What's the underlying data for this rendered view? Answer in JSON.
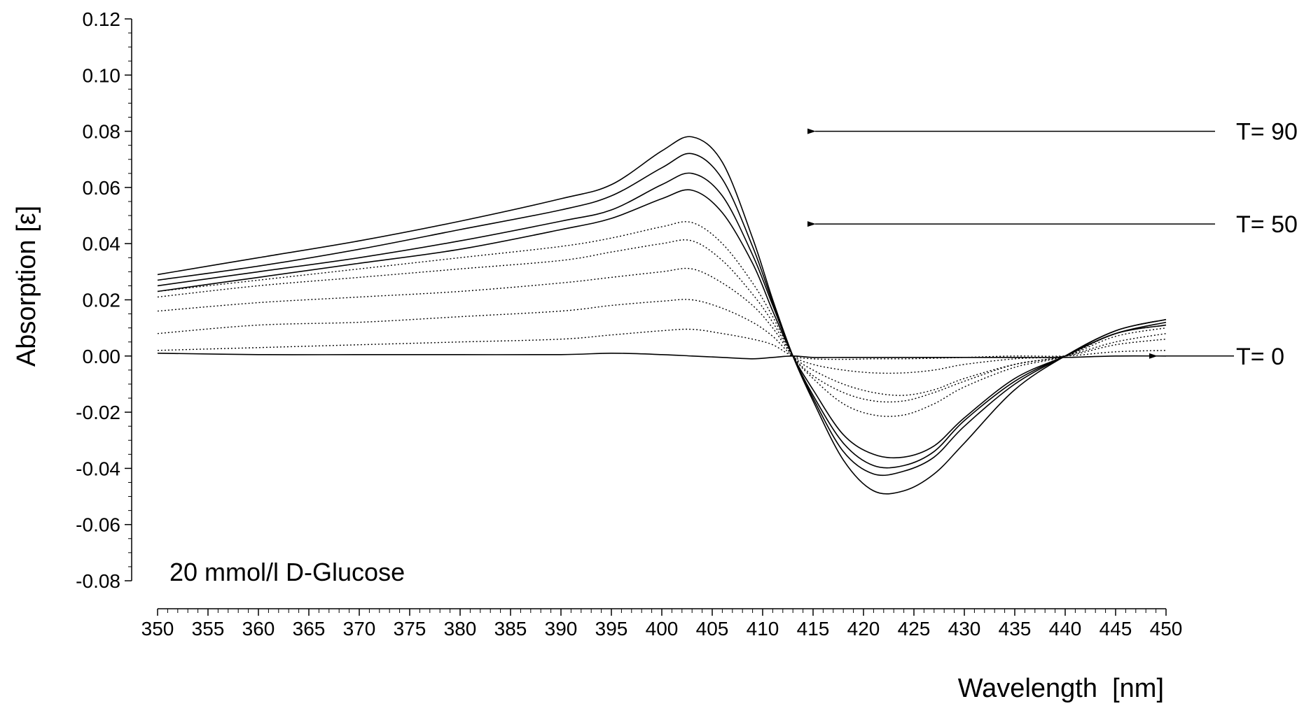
{
  "chart_data": {
    "type": "line",
    "title": "",
    "xlabel": "Wavelength  [nm]",
    "ylabel": "Absorption [ε]",
    "annotation": "20 mmol/l D-Glucose",
    "xlim": [
      350,
      450
    ],
    "ylim": [
      -0.08,
      0.12
    ],
    "xticks": [
      350,
      355,
      360,
      365,
      370,
      375,
      380,
      385,
      390,
      395,
      400,
      405,
      410,
      415,
      420,
      425,
      430,
      435,
      440,
      445,
      450
    ],
    "yticks": [
      -0.08,
      -0.06,
      -0.04,
      -0.02,
      0.0,
      0.02,
      0.04,
      0.06,
      0.08,
      0.1,
      0.12
    ],
    "ytick_labels": [
      "-0.08",
      "-0.06",
      "-0.04",
      "-0.02",
      "0.00",
      "0.02",
      "0.04",
      "0.06",
      "0.08",
      "0.10",
      "0.12"
    ],
    "grid": false,
    "legend": false,
    "labels": [
      {
        "text": "T= 90",
        "y": 0.08
      },
      {
        "text": "T= 50",
        "y": 0.047
      },
      {
        "text": "T= 0",
        "y": 0.0
      }
    ],
    "x": [
      350,
      360,
      370,
      380,
      390,
      395,
      400,
      403,
      406,
      409,
      411,
      413,
      415,
      418,
      421,
      424,
      427,
      430,
      435,
      440,
      445,
      450
    ],
    "series": [
      {
        "style": "solid",
        "values": [
          0.001,
          0.0005,
          0.0005,
          0.0005,
          0.0005,
          0.001,
          0.0005,
          0.0,
          -0.0005,
          -0.001,
          -0.0005,
          0.0,
          -0.0005,
          -0.0005,
          -0.0005,
          -0.0005,
          -0.0005,
          -0.0005,
          -0.0005,
          -0.0005,
          0.0,
          0.0
        ]
      },
      {
        "style": "dotted",
        "values": [
          0.002,
          0.003,
          0.004,
          0.005,
          0.006,
          0.0075,
          0.009,
          0.0095,
          0.008,
          0.006,
          0.004,
          0.0,
          -0.001,
          -0.0012,
          -0.001,
          -0.001,
          -0.0008,
          -0.0005,
          0.0,
          0.0,
          0.0015,
          0.002
        ]
      },
      {
        "style": "dotted",
        "values": [
          0.008,
          0.011,
          0.012,
          0.014,
          0.016,
          0.018,
          0.0195,
          0.02,
          0.017,
          0.012,
          0.007,
          0.0,
          -0.003,
          -0.005,
          -0.006,
          -0.006,
          -0.005,
          -0.003,
          -0.001,
          0.0,
          0.004,
          0.006
        ]
      },
      {
        "style": "dotted",
        "values": [
          0.016,
          0.019,
          0.021,
          0.023,
          0.026,
          0.028,
          0.03,
          0.031,
          0.026,
          0.018,
          0.01,
          0.0,
          -0.005,
          -0.01,
          -0.013,
          -0.014,
          -0.012,
          -0.008,
          -0.003,
          0.0,
          0.005,
          0.008
        ]
      },
      {
        "style": "dotted",
        "values": [
          0.021,
          0.025,
          0.028,
          0.031,
          0.034,
          0.037,
          0.04,
          0.041,
          0.034,
          0.022,
          0.012,
          0.0,
          -0.007,
          -0.013,
          -0.016,
          -0.016,
          -0.013,
          -0.009,
          -0.003,
          0.0,
          0.007,
          0.01
        ]
      },
      {
        "style": "dotted",
        "values": [
          0.023,
          0.027,
          0.031,
          0.035,
          0.039,
          0.042,
          0.046,
          0.0475,
          0.04,
          0.026,
          0.014,
          0.0,
          -0.008,
          -0.017,
          -0.021,
          -0.021,
          -0.017,
          -0.011,
          -0.004,
          0.0,
          0.008,
          0.011
        ]
      },
      {
        "style": "solid",
        "values": [
          0.023,
          0.028,
          0.033,
          0.038,
          0.045,
          0.049,
          0.056,
          0.059,
          0.051,
          0.033,
          0.016,
          0.0,
          -0.012,
          -0.028,
          -0.035,
          -0.036,
          -0.032,
          -0.022,
          -0.008,
          0.0,
          0.008,
          0.011
        ]
      },
      {
        "style": "solid",
        "values": [
          0.025,
          0.03,
          0.035,
          0.041,
          0.048,
          0.052,
          0.061,
          0.065,
          0.057,
          0.036,
          0.018,
          0.0,
          -0.014,
          -0.031,
          -0.039,
          -0.039,
          -0.034,
          -0.023,
          -0.009,
          0.0,
          0.008,
          0.012
        ]
      },
      {
        "style": "solid",
        "values": [
          0.027,
          0.032,
          0.038,
          0.045,
          0.052,
          0.057,
          0.067,
          0.072,
          0.063,
          0.039,
          0.019,
          0.0,
          -0.015,
          -0.034,
          -0.042,
          -0.041,
          -0.036,
          -0.025,
          -0.01,
          0.0,
          0.009,
          0.013
        ]
      },
      {
        "style": "solid",
        "values": [
          0.029,
          0.035,
          0.041,
          0.048,
          0.056,
          0.061,
          0.073,
          0.078,
          0.069,
          0.042,
          0.02,
          0.0,
          -0.016,
          -0.037,
          -0.048,
          -0.048,
          -0.042,
          -0.031,
          -0.012,
          0.0,
          0.009,
          0.013
        ]
      }
    ]
  }
}
